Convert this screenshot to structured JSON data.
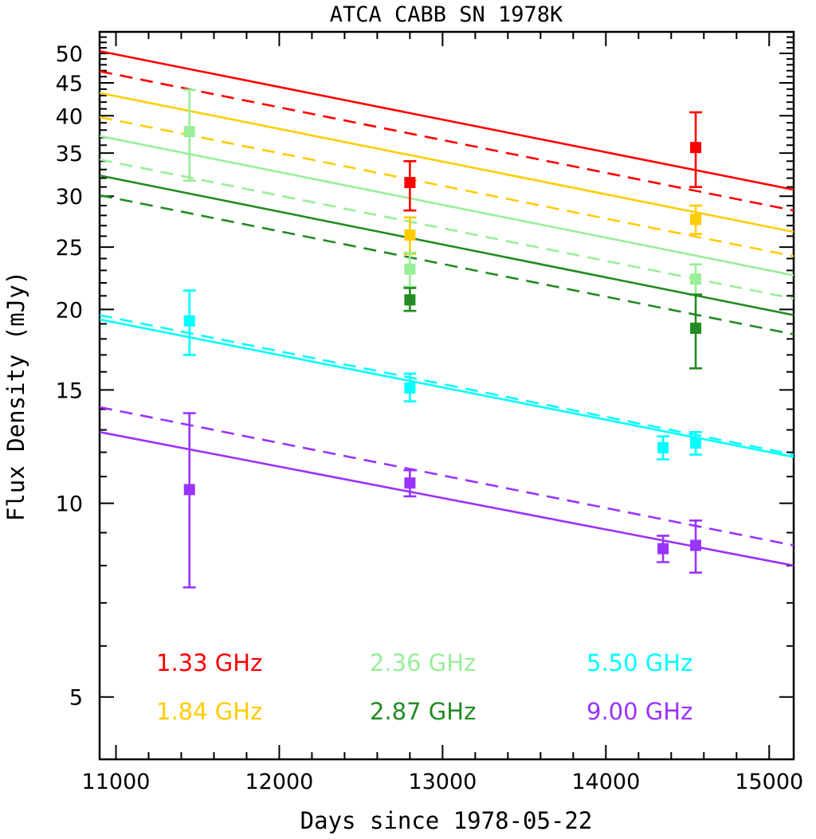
{
  "chart_data": {
    "type": "scatter",
    "title": "ATCA CABB SN 1978K",
    "xlabel": "Days since 1978-05-22",
    "ylabel": "Flux Density (mJy)",
    "xlim": [
      10900,
      15150
    ],
    "ylim": [
      4.0,
      54.0
    ],
    "yscale": "log",
    "grid": false,
    "legend_position": "bottom",
    "x_ticks": [
      11000,
      12000,
      13000,
      14000,
      15000
    ],
    "y_ticks": [
      5,
      10,
      15,
      20,
      25,
      30,
      35,
      40,
      45,
      50
    ],
    "series": [
      {
        "name": "1.33 GHz",
        "color": "#ff0000",
        "points": [
          {
            "x": 12800,
            "y": 31.5,
            "err_low": 28.5,
            "err_high": 34.0
          },
          {
            "x": 14550,
            "y": 35.7,
            "err_low": 31.0,
            "err_high": 40.5
          }
        ],
        "fit_solid": [
          [
            10900,
            50.4
          ],
          [
            15150,
            30.7
          ]
        ],
        "fit_dashed": [
          [
            10900,
            46.9
          ],
          [
            15150,
            28.5
          ]
        ]
      },
      {
        "name": "1.84 GHz",
        "color": "#ffcc00",
        "points": [
          {
            "x": 12800,
            "y": 26.1,
            "err_low": 24.4,
            "err_high": 27.8
          },
          {
            "x": 14550,
            "y": 27.6,
            "err_low": 26.2,
            "err_high": 29.0
          }
        ],
        "fit_solid": [
          [
            10900,
            43.4
          ],
          [
            15150,
            26.4
          ]
        ],
        "fit_dashed": [
          [
            10900,
            39.8
          ],
          [
            15150,
            24.2
          ]
        ]
      },
      {
        "name": "2.36 GHz",
        "color": "#99ee99",
        "points": [
          {
            "x": 11450,
            "y": 37.8,
            "err_low": 31.7,
            "err_high": 43.9
          },
          {
            "x": 12800,
            "y": 23.1,
            "err_low": 21.7,
            "err_high": 24.5
          },
          {
            "x": 14550,
            "y": 22.3,
            "err_low": 21.1,
            "err_high": 23.5
          }
        ],
        "fit_solid": [
          [
            10900,
            37.2
          ],
          [
            15150,
            22.6
          ]
        ],
        "fit_dashed": [
          [
            10900,
            34.2
          ],
          [
            15150,
            20.8
          ]
        ]
      },
      {
        "name": "2.87 GHz",
        "color": "#228b22",
        "points": [
          {
            "x": 12800,
            "y": 20.7,
            "err_low": 19.9,
            "err_high": 21.6
          },
          {
            "x": 14550,
            "y": 18.7,
            "err_low": 16.2,
            "err_high": 21.1
          }
        ],
        "fit_solid": [
          [
            10900,
            32.3
          ],
          [
            15150,
            19.6
          ]
        ],
        "fit_dashed": [
          [
            10900,
            30.1
          ],
          [
            15150,
            18.3
          ]
        ]
      },
      {
        "name": "5.50 GHz",
        "color": "#00ffff",
        "points": [
          {
            "x": 11450,
            "y": 19.2,
            "err_low": 17.0,
            "err_high": 21.4
          },
          {
            "x": 12800,
            "y": 15.1,
            "err_low": 14.4,
            "err_high": 15.9
          },
          {
            "x": 14350,
            "y": 12.2,
            "err_low": 11.7,
            "err_high": 12.7
          },
          {
            "x": 14550,
            "y": 12.4,
            "err_low": 11.9,
            "err_high": 12.9
          }
        ],
        "fit_solid": [
          [
            10900,
            19.3
          ],
          [
            15150,
            11.8
          ]
        ],
        "fit_dashed": [
          [
            10900,
            19.6
          ],
          [
            15150,
            11.9
          ]
        ]
      },
      {
        "name": "9.00 GHz",
        "color": "#9933ff",
        "points": [
          {
            "x": 11450,
            "y": 10.5,
            "err_low": 7.4,
            "err_high": 13.8
          },
          {
            "x": 12800,
            "y": 10.75,
            "err_low": 10.25,
            "err_high": 11.25
          },
          {
            "x": 14350,
            "y": 8.5,
            "err_low": 8.1,
            "err_high": 8.9
          },
          {
            "x": 14550,
            "y": 8.6,
            "err_low": 7.8,
            "err_high": 9.4
          }
        ],
        "fit_solid": [
          [
            10900,
            12.9
          ],
          [
            15150,
            8.0
          ]
        ],
        "fit_dashed": [
          [
            10900,
            14.1
          ],
          [
            15150,
            8.6
          ]
        ]
      }
    ]
  }
}
